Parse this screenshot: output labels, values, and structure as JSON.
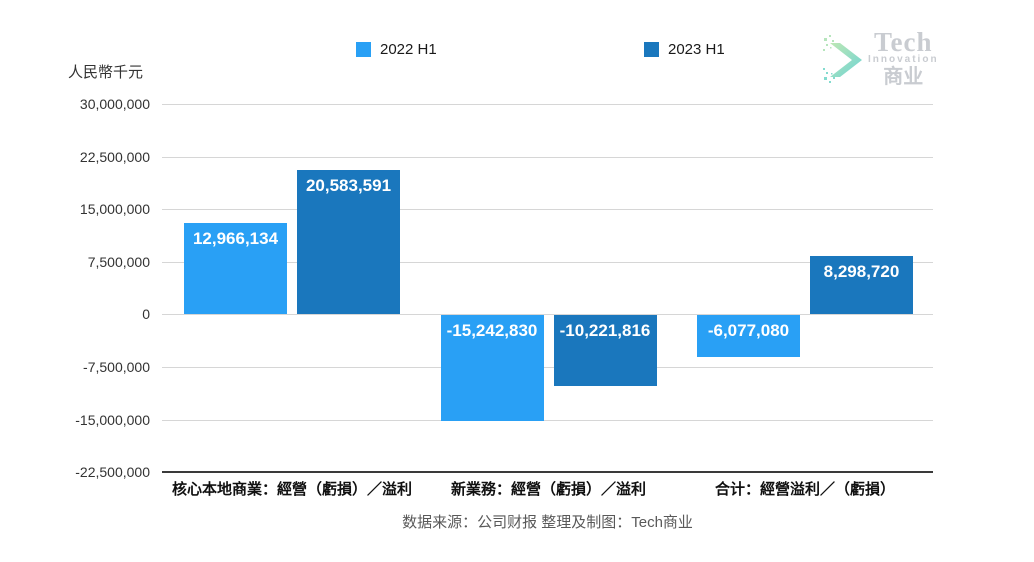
{
  "chart_data": {
    "type": "bar",
    "title": "",
    "ylabel": "人民幣千元",
    "categories": [
      "核心本地商業：經營（虧損）／溢利",
      "新業務：經營（虧損）／溢利",
      "合计：經營溢利／（虧損）"
    ],
    "series": [
      {
        "name": "2022 H1",
        "color": "#29A0F5",
        "values": [
          12966134,
          -15242830,
          -6077080
        ],
        "labels": [
          "12,966,134",
          "-15,242,830",
          "-6,077,080"
        ]
      },
      {
        "name": "2023 H1",
        "color": "#1A77BD",
        "values": [
          20583591,
          -10221816,
          8298720
        ],
        "labels": [
          "20,583,591",
          "-10,221,816",
          "8,298,720"
        ]
      }
    ],
    "yticks": [
      30000000,
      22500000,
      15000000,
      7500000,
      0,
      -7500000,
      -15000000,
      -22500000
    ],
    "ytick_labels": [
      "30,000,000",
      "22,500,000",
      "15,000,000",
      "7,500,000",
      "0",
      "-7,500,000",
      "-15,000,000",
      "-22,500,000"
    ],
    "ylim": [
      -22500000,
      30000000
    ],
    "grid": true,
    "legend_position": "top"
  },
  "footer": {
    "text": "数据来源：公司财报 整理及制图：Tech商业"
  },
  "logo": {
    "title": "Tech",
    "subtitle": "Innovation",
    "cn": "商业"
  },
  "colors": {
    "series_2022": "#29A0F5",
    "series_2023": "#1A77BD",
    "gridline": "#d6d6d6",
    "axis": "#3a3a3a",
    "logo_gray": "#c9ccd1",
    "logo_green": "#a9e09b",
    "logo_teal": "#3fc6c6"
  }
}
